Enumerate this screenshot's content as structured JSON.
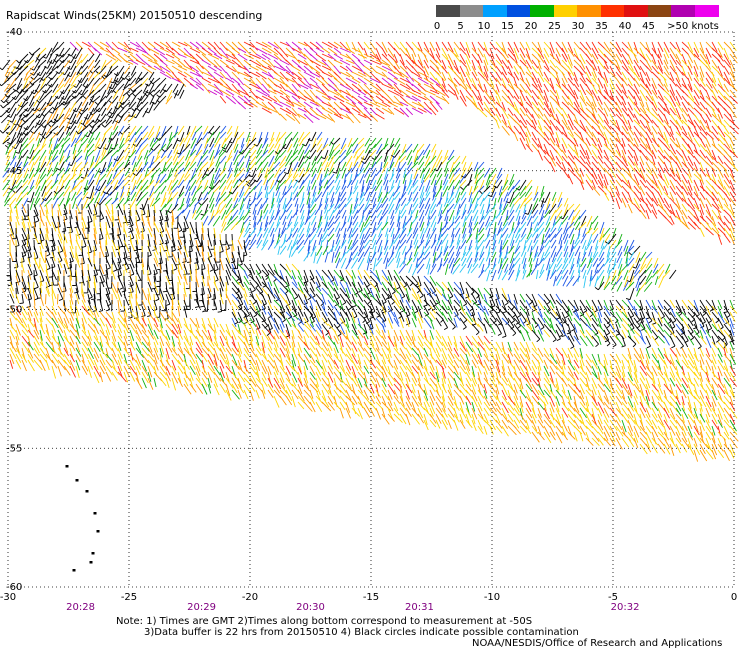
{
  "title": "Rapidscat Winds(25KM) 20150510 descending",
  "legend": {
    "labels": [
      "0",
      "5",
      "10",
      "15",
      "20",
      "25",
      "30",
      "35",
      "40",
      "45",
      ">50 knots"
    ],
    "colors": [
      "#4a4a4a",
      "#8c8c8c",
      "#00a0ff",
      "#0050e0",
      "#00b000",
      "#ffd000",
      "#ff9000",
      "#ff3000",
      "#e01010",
      "#8b4513",
      "#b000b0",
      "#ee00ee"
    ]
  },
  "map": {
    "lat_labels": [
      "-40",
      "-45",
      "-50",
      "-55",
      "-60"
    ],
    "lon_labels": [
      "-30",
      "-25",
      "-20",
      "-15",
      "-10",
      "-5",
      "0"
    ],
    "time_labels": [
      "20:28",
      "20:29",
      "20:30",
      "20:31",
      "20:32"
    ],
    "time_color": "#800080"
  },
  "notes": {
    "line1": "Note: 1) Times are GMT 2)Times along bottom correspond to measurement at -50S",
    "line2": "3)Data buffer is 22 hrs from 20150510 4) Black circles indicate possible contamination",
    "credit": "NOAA/NESDIS/Office of Research and Applications"
  }
}
